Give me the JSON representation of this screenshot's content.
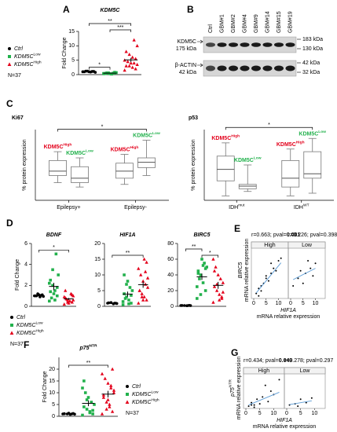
{
  "chart_data": [
    {
      "type": "dot",
      "panel": "A",
      "title": {
        "base": "KDM5C"
      },
      "ylabel": "Fold Change",
      "ylim": [
        0,
        15
      ],
      "yticks": [
        0,
        5,
        10,
        15
      ],
      "legend": true,
      "n": "N=37",
      "series": [
        {
          "name": {
            "base": "Ctrl"
          },
          "color": "#000000",
          "marker": "circle",
          "values": [
            1.0,
            1.1,
            0.9,
            1.2,
            1.0,
            0.8,
            1.1,
            1.0,
            1.2
          ],
          "mean": 1.0,
          "sem": 0.05
        },
        {
          "name": {
            "base": "KDM5C",
            "sup": "Low"
          },
          "color": "#22b14c",
          "marker": "square",
          "values": [
            0.3,
            0.5,
            0.2,
            0.6,
            0.4,
            0.7,
            0.5,
            0.3,
            0.6,
            0.4,
            0.8,
            0.2,
            0.5,
            0.4
          ],
          "mean": 0.5,
          "sem": 0.06
        },
        {
          "name": {
            "base": "KDM5C",
            "sup": "High"
          },
          "color": "#e3001b",
          "marker": "triangle",
          "values": [
            1.5,
            2,
            2.5,
            3,
            3,
            3.5,
            4,
            4,
            4.5,
            5,
            5.5,
            6,
            7,
            8,
            10,
            12
          ],
          "mean": 5.1,
          "sem": 0.7
        }
      ],
      "significance": [
        {
          "label": "**",
          "from": 0,
          "to": 2
        },
        {
          "label": "***",
          "from": 1,
          "to": 2
        },
        {
          "label": "*",
          "from": 0,
          "to": 1
        }
      ]
    },
    {
      "type": "blot",
      "panel": "B",
      "lanes": [
        "Ctrl",
        "GBM#1",
        "GBM#2",
        "GBM#4",
        "GBM#9",
        "GBM#14",
        "GBM#15",
        "GBM#19"
      ],
      "rows": [
        {
          "name": "KDM5C",
          "size": "175 kDa"
        },
        {
          "name": "β-ACTIN",
          "size": "42 kDa"
        }
      ],
      "markers": [
        "183 kDa",
        "130 kDa",
        "42 kDa",
        "32 kDa"
      ]
    },
    {
      "type": "box",
      "panel": "C",
      "title": "Ki67",
      "ylabel": "% protein expression",
      "ylim": [
        0,
        80
      ],
      "groups": [
        {
          "label": {
            "base": "Epilepsy+"
          },
          "boxes": [
            {
              "name": {
                "base": "KDM5C",
                "sup": "High"
              },
              "color": "#e3001b",
              "min": 20,
              "q1": 28,
              "median": 33,
              "q3": 45,
              "max": 55
            },
            {
              "name": {
                "base": "KDM5C",
                "sup": "Low"
              },
              "color": "#22b14c",
              "min": 15,
              "q1": 20,
              "median": 25,
              "q3": 38,
              "max": 48
            }
          ]
        },
        {
          "label": {
            "base": "Epilepsy-"
          },
          "boxes": [
            {
              "name": {
                "base": "KDM5C",
                "sup": "High"
              },
              "color": "#e3001b",
              "min": 18,
              "q1": 25,
              "median": 33,
              "q3": 42,
              "max": 52
            },
            {
              "name": {
                "base": "KDM5C",
                "sup": "Low"
              },
              "color": "#22b14c",
              "min": 28,
              "q1": 37,
              "median": 43,
              "q3": 48,
              "max": 68
            }
          ]
        }
      ],
      "significance": [
        {
          "label": "*",
          "from": 0,
          "to": 3
        }
      ]
    },
    {
      "type": "box",
      "title": "p53",
      "ylabel": "% protein expression",
      "ylim": [
        0,
        80
      ],
      "groups": [
        {
          "label": {
            "base": "IDH",
            "sup": "mut"
          },
          "boxes": [
            {
              "name": {
                "base": "KDM5C",
                "sup": "High"
              },
              "color": "#e3001b",
              "min": 5,
              "q1": 22,
              "median": 35,
              "q3": 50,
              "max": 65
            },
            {
              "name": {
                "base": "KDM5C",
                "sup": "Low"
              },
              "color": "#22b14c",
              "min": 10,
              "q1": 13,
              "median": 16,
              "q3": 18,
              "max": 40
            }
          ]
        },
        {
          "label": {
            "base": "IDH",
            "sup": "WT"
          },
          "boxes": [
            {
              "name": {
                "base": "KDM5C",
                "sup": "High"
              },
              "color": "#e3001b",
              "min": 5,
              "q1": 15,
              "median": 25,
              "q3": 45,
              "max": 58
            },
            {
              "name": {
                "base": "KDM5C",
                "sup": "Low"
              },
              "color": "#22b14c",
              "min": 8,
              "q1": 25,
              "median": 30,
              "q3": 55,
              "max": 70
            }
          ]
        }
      ],
      "significance": [
        {
          "label": "*",
          "from": 0,
          "to": 3
        }
      ]
    },
    {
      "type": "dot",
      "panel": "D",
      "title": {
        "base": "BDNF"
      },
      "ylabel": "Fold Change",
      "ylim": [
        0,
        6
      ],
      "yticks": [
        0,
        2,
        4,
        6
      ],
      "legend": true,
      "n": "N=37",
      "series": [
        {
          "name": {
            "base": "Ctrl"
          },
          "color": "#000000",
          "marker": "circle",
          "values": [
            1,
            1.1,
            0.9,
            1.2,
            1,
            0.95,
            1.05,
            1.1,
            1
          ],
          "mean": 1.03,
          "sem": 0.03
        },
        {
          "name": {
            "base": "KDM5C",
            "sup": "Low"
          },
          "color": "#22b14c",
          "marker": "square",
          "values": [
            0.5,
            1,
            1.5,
            2,
            2.5,
            3,
            5,
            1.2,
            0.8,
            2.2,
            1.8,
            0.6,
            3.5,
            1.4
          ],
          "mean": 1.9,
          "sem": 0.35
        },
        {
          "name": {
            "base": "KDM5C",
            "sup": "High"
          },
          "color": "#e3001b",
          "marker": "triangle",
          "values": [
            0.2,
            0.4,
            0.5,
            0.6,
            0.8,
            1,
            1.2,
            0.3,
            0.7,
            0.9,
            1.1,
            0.5,
            0.4,
            1.5,
            0.6
          ],
          "mean": 0.71,
          "sem": 0.09
        }
      ],
      "significance": [
        {
          "label": "*",
          "from": 0,
          "to": 2
        }
      ]
    },
    {
      "type": "dot",
      "title": {
        "base": "HIF1A"
      },
      "ylim": [
        0,
        20
      ],
      "yticks": [
        0,
        5,
        10,
        15,
        20
      ],
      "series": [
        {
          "color": "#000000",
          "marker": "circle",
          "values": [
            1,
            1,
            0.8,
            1.2,
            1.1,
            0.9,
            1
          ],
          "mean": 1,
          "sem": 0.05
        },
        {
          "color": "#22b14c",
          "marker": "square",
          "values": [
            0.5,
            1,
            2,
            3,
            4,
            5,
            6,
            8,
            2.5,
            1.5,
            3.5,
            0.8,
            7,
            10
          ],
          "mean": 3.9,
          "sem": 0.8
        },
        {
          "color": "#e3001b",
          "marker": "triangle",
          "values": [
            1,
            2,
            3,
            4,
            5,
            6,
            7,
            8,
            10,
            12,
            14,
            15,
            3,
            5,
            9,
            11,
            2
          ],
          "mean": 6.9,
          "sem": 1
        }
      ],
      "significance": [
        {
          "label": "**",
          "from": 0,
          "to": 2
        }
      ]
    },
    {
      "type": "dot",
      "title": {
        "base": "BIRC5"
      },
      "ylim": [
        0,
        80
      ],
      "yticks": [
        0,
        20,
        40,
        60,
        80
      ],
      "series": [
        {
          "color": "#000000",
          "marker": "circle",
          "values": [
            1,
            1.2,
            0.8,
            1,
            1.1,
            0.9,
            1
          ],
          "mean": 1,
          "sem": 0.05
        },
        {
          "color": "#22b14c",
          "marker": "square",
          "values": [
            10,
            20,
            30,
            40,
            45,
            50,
            55,
            60,
            35,
            25,
            48,
            52,
            15,
            42
          ],
          "mean": 37.6,
          "sem": 4
        },
        {
          "color": "#e3001b",
          "marker": "triangle",
          "values": [
            5,
            10,
            15,
            20,
            25,
            30,
            35,
            40,
            50,
            60,
            12,
            8,
            28,
            45,
            18
          ],
          "mean": 26.7,
          "sem": 4.4
        }
      ],
      "significance": [
        {
          "label": "**",
          "from": 0,
          "to": 1
        },
        {
          "label": "*",
          "from": 1,
          "to": 2
        }
      ]
    },
    {
      "type": "scatter",
      "panel": "E",
      "stats": [
        {
          "text": "r=0.663; pval=",
          "value": "0.001",
          "bold": true
        },
        {
          "text": "r=0.226; pval=",
          "value": "0.398",
          "bold": false
        }
      ],
      "ylabel": {
        "base": "BIRC5"
      },
      "ylabel_sub": "mRNA relative expression",
      "xlabel": {
        "base": "HIF1A"
      },
      "xlabel_sub": "mRNA relative expression",
      "xlim": [
        0,
        13
      ],
      "xticks": [
        0,
        5,
        10
      ],
      "ylim": [
        0,
        20
      ],
      "fit_color": "#5b9bd5",
      "facets": [
        {
          "name": "High",
          "x": [
            1,
            2,
            3,
            4,
            5,
            6,
            7,
            8,
            9,
            10,
            3,
            5,
            2,
            7,
            11
          ],
          "y": [
            2,
            4,
            3,
            6,
            8,
            7,
            10,
            12,
            11,
            15,
            5,
            9,
            1,
            14,
            16
          ],
          "fit": {
            "slope": 1.2,
            "intercept": 1
          }
        },
        {
          "name": "Low",
          "x": [
            1,
            3,
            5,
            6,
            8,
            9,
            10,
            4,
            7
          ],
          "y": [
            5,
            8,
            6,
            10,
            12,
            9,
            14,
            11,
            15
          ],
          "fit": {
            "slope": 0.5,
            "intercept": 7
          }
        }
      ]
    },
    {
      "type": "dot",
      "panel": "F",
      "title": {
        "base": "p75",
        "sup": "NTR"
      },
      "ylabel": "Fold Change",
      "ylim": [
        0,
        25
      ],
      "yticks": [
        0,
        5,
        10,
        15,
        20
      ],
      "legend": true,
      "n": "N=37",
      "series": [
        {
          "name": {
            "base": "Ctrl"
          },
          "color": "#000000",
          "marker": "circle",
          "values": [
            1,
            1.2,
            0.8,
            1,
            1.1,
            0.9,
            1,
            1.3
          ],
          "mean": 1,
          "sem": 0.06
        },
        {
          "name": {
            "base": "KDM5C",
            "sup": "Low"
          },
          "color": "#22b14c",
          "marker": "square",
          "values": [
            0.5,
            1,
            2,
            3,
            4,
            5,
            6,
            8,
            10,
            12,
            2.5,
            1.5,
            7,
            15
          ],
          "mean": 5.5,
          "sem": 1.2
        },
        {
          "name": {
            "base": "KDM5C",
            "sup": "High"
          },
          "color": "#e3001b",
          "marker": "triangle",
          "values": [
            1,
            2,
            4,
            6,
            8,
            10,
            12,
            14,
            16,
            18,
            20,
            5,
            3,
            9,
            11,
            13,
            7
          ],
          "mean": 9.4,
          "sem": 1.4
        }
      ],
      "significance": [
        {
          "label": "**",
          "from": 0,
          "to": 2
        }
      ]
    },
    {
      "type": "scatter",
      "panel": "G",
      "stats": [
        {
          "text": "r=0.434; pval=",
          "value": "0.049",
          "bold": true
        },
        {
          "text": "r=0.278; pval=",
          "value": "0.297",
          "bold": false
        }
      ],
      "ylabel": {
        "base": "p75",
        "sup": "NTR"
      },
      "ylabel_sub": "mRNA relative expression",
      "xlabel": {
        "base": "HIF1A"
      },
      "xlabel_sub": "mRNA relative expression",
      "xlim": [
        0,
        13
      ],
      "xticks": [
        0,
        5,
        10
      ],
      "ylim": [
        0,
        30
      ],
      "fit_color": "#5b9bd5",
      "facets": [
        {
          "name": "High",
          "x": [
            1,
            2,
            3,
            4,
            5,
            6,
            8,
            10,
            12,
            3,
            7,
            2,
            9
          ],
          "y": [
            2,
            5,
            3,
            8,
            4,
            10,
            6,
            12,
            25,
            1,
            20,
            3,
            15
          ],
          "fit": {
            "slope": 1.0,
            "intercept": 2
          }
        },
        {
          "name": "Low",
          "x": [
            1,
            3,
            5,
            7,
            9,
            4
          ],
          "y": [
            3,
            4,
            8,
            5,
            9,
            2
          ],
          "fit": {
            "slope": 0.4,
            "intercept": 3
          }
        }
      ]
    }
  ]
}
